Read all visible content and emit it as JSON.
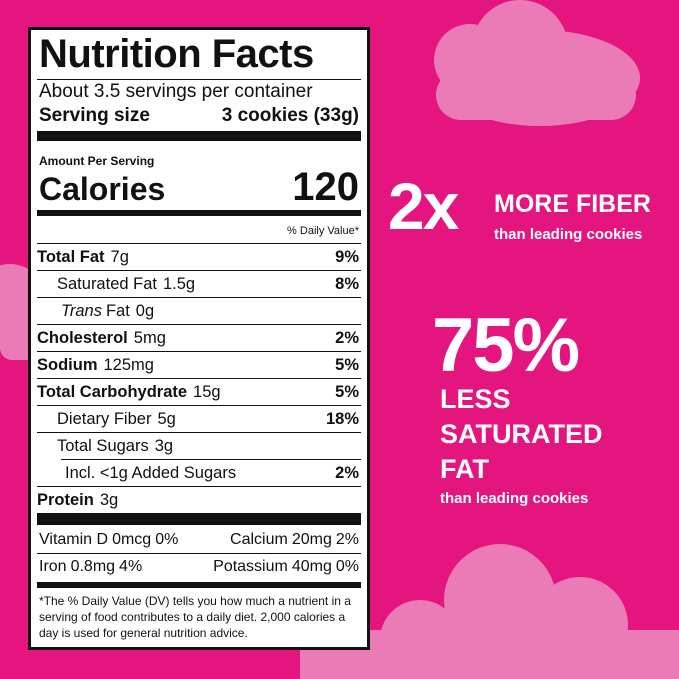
{
  "label": {
    "title": "Nutrition Facts",
    "servings": "About 3.5 servings per container",
    "serving_size_label": "Serving size",
    "serving_size_value": "3 cookies (33g)",
    "amount_per_serving": "Amount Per Serving",
    "calories_label": "Calories",
    "calories_value": 120,
    "dv_header": "% Daily Value*",
    "total_fat": {
      "name": "Total Fat",
      "amount": "7g",
      "dv": "9%"
    },
    "saturated_fat": {
      "name": "Saturated Fat",
      "amount": "1.5g",
      "dv": "8%"
    },
    "trans_fat": {
      "name_italic": "Trans",
      "name": "Fat",
      "amount": "0g"
    },
    "cholesterol": {
      "name": "Cholesterol",
      "amount": "5mg",
      "dv": "2%"
    },
    "sodium": {
      "name": "Sodium",
      "amount": "125mg",
      "dv": "5%"
    },
    "total_carbohydrate": {
      "name": "Total Carbohydrate",
      "amount": "15g",
      "dv": "5%"
    },
    "dietary_fiber": {
      "name": "Dietary Fiber",
      "amount": "5g",
      "dv": "18%"
    },
    "total_sugars": {
      "name": "Total Sugars",
      "amount": "3g"
    },
    "added_sugars": {
      "name": "Incl. <1g Added Sugars",
      "dv": "2%"
    },
    "protein": {
      "name": "Protein",
      "amount": "3g"
    },
    "vitamin_d": {
      "name": "Vitamin D",
      "amount": "0mcg",
      "dv": "0%"
    },
    "calcium": {
      "name": "Calcium",
      "amount": "20mg",
      "dv": "2%"
    },
    "iron": {
      "name": "Iron",
      "amount": "0.8mg",
      "dv": "4%"
    },
    "potassium": {
      "name": "Potassium",
      "amount": "40mg",
      "dv": "0%"
    },
    "footnote": "*The % Daily Value (DV) tells you how much a nutrient in a serving of food contributes to a daily diet. 2,000 calories a day is used for general nutrition advice."
  },
  "claims": {
    "fiber_big": "2x",
    "fiber_text": "MORE FIBER",
    "fiber_sub": "than leading cookies",
    "fat_big": "75%",
    "fat_text": "LESS SATURATED FAT",
    "fat_sub": "than leading cookies"
  }
}
